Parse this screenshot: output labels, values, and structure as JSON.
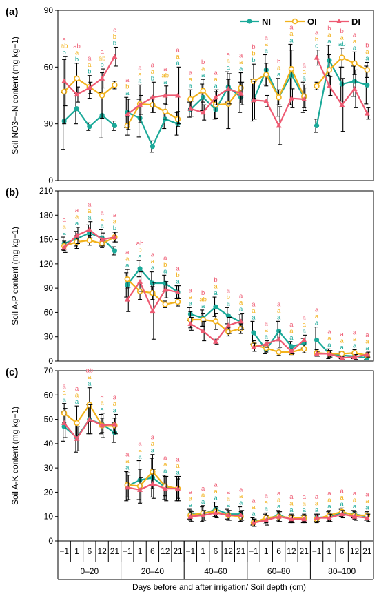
{
  "colors": {
    "NI": "#1aa999",
    "OI": "#f2b21c",
    "DI": "#ee5a72"
  },
  "series_names": [
    "NI",
    "OI",
    "DI"
  ],
  "days": [
    "−1",
    "1",
    "6",
    "12",
    "21"
  ],
  "depths": [
    "0–20",
    "20–40",
    "40–60",
    "60–80",
    "80–100"
  ],
  "xlabel": "Days before and after irrigation/ Soil depth (cm)",
  "chart_data": [
    {
      "type": "line",
      "panel_label": "(a)",
      "ylabel": "Soil NO3−–N content (mg kg−1)",
      "ylim": [
        0,
        90
      ],
      "yticks": [
        0,
        30,
        60,
        90
      ],
      "show_legend": true,
      "series": [
        {
          "name": "NI",
          "values": [
            31.5,
            38,
            28.5,
            34.5,
            29,
            36,
            33,
            18,
            32.5,
            30,
            37.5,
            44,
            37.5,
            49.5,
            44,
            42.5,
            58.5,
            44,
            56,
            44,
            29,
            63.5,
            51,
            52.5,
            50.5
          ],
          "err": [
            15,
            8,
            2,
            12,
            2.5,
            8,
            10,
            3,
            5,
            6,
            4,
            7,
            5,
            8,
            8,
            11,
            8,
            10,
            16,
            8,
            3.5,
            8,
            9,
            8,
            10
          ]
        },
        {
          "name": "OI",
          "values": [
            47,
            54,
            49.5,
            45,
            50.5,
            29,
            40.5,
            40,
            36.5,
            32.5,
            43,
            47.5,
            40,
            40.5,
            49,
            52.5,
            56,
            44,
            59,
            44.5,
            50,
            58.5,
            65,
            62,
            58.5
          ],
          "err": [
            17,
            8,
            6,
            12,
            2,
            5,
            10,
            4,
            4,
            4,
            5,
            6,
            7,
            13,
            8,
            9,
            6,
            4,
            10,
            6,
            2,
            8,
            5,
            6,
            4
          ]
        },
        {
          "name": "DI",
          "values": [
            52.5,
            45.5,
            49,
            54,
            65.5,
            35,
            40,
            44,
            45,
            45,
            38,
            36,
            44,
            48.5,
            46,
            42.5,
            42,
            29,
            43.5,
            43,
            65,
            50,
            40,
            48.5,
            35.5
          ],
          "err": [
            13,
            4,
            3,
            5,
            5,
            8,
            5,
            8,
            5,
            15,
            4,
            4,
            4,
            8,
            6,
            10,
            3,
            10,
            5,
            6,
            4,
            5,
            14,
            10,
            3
          ]
        }
      ],
      "sig_letters": [
        [
          "b",
          "b",
          "b",
          "b",
          "b",
          "a",
          "a",
          "b",
          "a",
          "a",
          "a",
          "a",
          "a",
          "a",
          "a",
          "b",
          "a",
          "a",
          "a",
          "a",
          "c",
          "a",
          "ab",
          "a",
          "a"
        ],
        [
          "ab",
          "a",
          "a",
          "ab",
          "b",
          "b",
          "a",
          "a",
          "ab",
          "a",
          "a",
          "a",
          "a",
          "a",
          "a",
          "b",
          "a",
          "a",
          "a",
          "a",
          "b",
          "a",
          "a",
          "a",
          "a"
        ],
        [
          "a",
          "ab",
          "a",
          "a",
          "c",
          "a",
          "a",
          "a",
          "a",
          "a",
          "a",
          "b",
          "a",
          "a",
          "a",
          "b",
          "a",
          "b",
          "a",
          "a",
          "a",
          "b",
          "b",
          "a",
          "b"
        ]
      ]
    },
    {
      "type": "line",
      "panel_label": "(b)",
      "ylabel": "Soil A-P content (mg kg−1)",
      "ylim": [
        0,
        210
      ],
      "yticks": [
        0,
        30,
        60,
        90,
        120,
        150,
        180,
        210
      ],
      "show_legend": false,
      "series": [
        {
          "name": "NI",
          "values": [
            145,
            151,
            158,
            152,
            136,
            94,
            114,
            96,
            96,
            85,
            58,
            53,
            67,
            56,
            48,
            35,
            14,
            37,
            18,
            22,
            26,
            9,
            7,
            6,
            4
          ],
          "err": [
            8,
            9,
            10,
            10,
            5,
            15,
            10,
            14,
            10,
            8,
            8,
            10,
            12,
            10,
            10,
            14,
            5,
            12,
            6,
            6,
            16,
            6,
            4,
            3,
            2
          ]
        },
        {
          "name": "OI",
          "values": [
            142,
            147,
            149,
            145,
            153,
            101,
            86,
            84,
            70,
            73,
            51,
            51,
            49,
            36,
            40,
            20,
            16,
            11,
            11,
            15,
            10,
            9,
            9,
            10,
            7
          ],
          "err": [
            6,
            8,
            6,
            5,
            6,
            12,
            10,
            8,
            4,
            5,
            10,
            8,
            10,
            5,
            6,
            5,
            5,
            4,
            3,
            5,
            4,
            4,
            3,
            4,
            3
          ]
        },
        {
          "name": "DI",
          "values": [
            140,
            155,
            162,
            150,
            153,
            76,
            98,
            62,
            88,
            85,
            46,
            37,
            24,
            44,
            49,
            17,
            21,
            27,
            12,
            26,
            9,
            9,
            4,
            5,
            8
          ],
          "err": [
            6,
            10,
            10,
            8,
            6,
            15,
            12,
            35,
            10,
            8,
            8,
            12,
            3,
            10,
            10,
            5,
            4,
            10,
            3,
            6,
            3,
            4,
            2,
            3,
            3
          ]
        }
      ],
      "sig_letters": [
        [
          "a",
          "a",
          "a",
          "a",
          "b",
          "a",
          "a",
          "a",
          "a",
          "a",
          "a",
          "a",
          "a",
          "a",
          "a",
          "a",
          "a",
          "a",
          "a",
          "a",
          "a",
          "a",
          "a",
          "a",
          "a"
        ],
        [
          "a",
          "a",
          "a",
          "a",
          "a",
          "a",
          "b",
          "a",
          "b",
          "b",
          "a",
          "ab",
          "a",
          "b",
          "a",
          "a",
          "a",
          "a",
          "a",
          "a",
          "a",
          "a",
          "a",
          "a",
          "a"
        ],
        [
          "a",
          "a",
          "a",
          "a",
          "a",
          "a",
          "ab",
          "a",
          "a",
          "a",
          "a",
          "b",
          "b",
          "a",
          "a",
          "a",
          "a",
          "a",
          "a",
          "a",
          "a",
          "a",
          "a",
          "a",
          "a"
        ]
      ]
    },
    {
      "type": "line",
      "panel_label": "(c)",
      "ylabel": "Soil A-K content (mg kg−1)",
      "ylim": [
        0,
        70
      ],
      "yticks": [
        0,
        10,
        20,
        30,
        40,
        50,
        60,
        70
      ],
      "show_legend": false,
      "series": [
        {
          "name": "NI",
          "values": [
            47,
            42.5,
            50,
            48,
            44.5,
            22.5,
            25,
            26,
            22,
            21.5,
            11,
            11,
            13,
            11,
            11,
            8,
            9,
            10.5,
            9,
            9,
            9.5,
            10,
            11.5,
            11,
            10
          ],
          "err": [
            6,
            6,
            6,
            4,
            4,
            6,
            8,
            8,
            5,
            5,
            2,
            3,
            3,
            2,
            3,
            1.5,
            2,
            2,
            1.5,
            1.5,
            1.5,
            2,
            1.5,
            1.5,
            1.5
          ]
        },
        {
          "name": "OI",
          "values": [
            52.5,
            48.5,
            56,
            47.5,
            47.5,
            23,
            22.5,
            28.5,
            22.5,
            21.5,
            10.5,
            11.5,
            12,
            10.5,
            10,
            7.5,
            9.5,
            10,
            9.5,
            9.5,
            9,
            10.5,
            12,
            10.5,
            10.5
          ],
          "err": [
            4,
            7,
            7,
            3,
            3,
            5,
            7,
            7,
            4,
            4,
            2,
            3,
            2,
            2,
            2,
            1.5,
            2,
            2,
            1.5,
            1.5,
            1.5,
            2,
            1.5,
            1.5,
            1.5
          ]
        },
        {
          "name": "DI",
          "values": [
            48.5,
            42,
            50,
            47.5,
            48,
            22,
            21,
            23.5,
            21.5,
            21.5,
            10,
            10.5,
            11.5,
            10.5,
            10.5,
            7.5,
            8.5,
            10,
            9,
            9,
            9.5,
            9.5,
            11,
            10,
            9.5
          ],
          "err": [
            6,
            5,
            6,
            5,
            4,
            5,
            5,
            6,
            5,
            5,
            2,
            2,
            2,
            2,
            2,
            1.5,
            2,
            2,
            1.5,
            1.5,
            1.5,
            1.5,
            1.5,
            1.5,
            1.5
          ]
        }
      ],
      "sig_letters": [
        [
          "a",
          "a",
          "a",
          "a",
          "a",
          "a",
          "a",
          "a",
          "a",
          "a",
          "a",
          "a",
          "a",
          "a",
          "a",
          "a",
          "a",
          "a",
          "a",
          "a",
          "a",
          "a",
          "a",
          "a",
          "a"
        ],
        [
          "a",
          "a",
          "a",
          "a",
          "a",
          "a",
          "a",
          "a",
          "a",
          "a",
          "a",
          "a",
          "a",
          "a",
          "a",
          "a",
          "a",
          "a",
          "a",
          "a",
          "a",
          "a",
          "a",
          "a",
          "a"
        ],
        [
          "a",
          "a",
          "ab",
          "a",
          "a",
          "a",
          "a",
          "a",
          "a",
          "a",
          "a",
          "a",
          "a",
          "a",
          "a",
          "a",
          "a",
          "a",
          "a",
          "a",
          "a",
          "a",
          "a",
          "a",
          "a"
        ]
      ]
    }
  ]
}
